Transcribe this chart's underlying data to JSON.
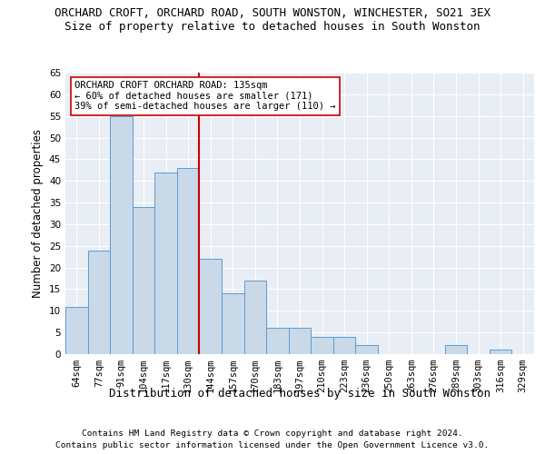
{
  "title": "ORCHARD CROFT, ORCHARD ROAD, SOUTH WONSTON, WINCHESTER, SO21 3EX",
  "subtitle": "Size of property relative to detached houses in South Wonston",
  "xlabel": "Distribution of detached houses by size in South Wonston",
  "ylabel": "Number of detached properties",
  "footnote1": "Contains HM Land Registry data © Crown copyright and database right 2024.",
  "footnote2": "Contains public sector information licensed under the Open Government Licence v3.0.",
  "categories": [
    "64sqm",
    "77sqm",
    "91sqm",
    "104sqm",
    "117sqm",
    "130sqm",
    "144sqm",
    "157sqm",
    "170sqm",
    "183sqm",
    "197sqm",
    "210sqm",
    "223sqm",
    "236sqm",
    "250sqm",
    "263sqm",
    "276sqm",
    "289sqm",
    "303sqm",
    "316sqm",
    "329sqm"
  ],
  "values": [
    11,
    24,
    55,
    34,
    42,
    43,
    22,
    14,
    17,
    6,
    6,
    4,
    4,
    2,
    0,
    0,
    0,
    2,
    0,
    1,
    0
  ],
  "bar_color": "#c9d9e8",
  "bar_edgecolor": "#5b9bd5",
  "vline_x_index": 5.5,
  "vline_color": "#cc0000",
  "annotation_line1": "ORCHARD CROFT ORCHARD ROAD: 135sqm",
  "annotation_line2": "← 60% of detached houses are smaller (171)",
  "annotation_line3": "39% of semi-detached houses are larger (110) →",
  "annotation_box_color": "white",
  "annotation_box_edgecolor": "#cc0000",
  "ylim": [
    0,
    65
  ],
  "yticks": [
    0,
    5,
    10,
    15,
    20,
    25,
    30,
    35,
    40,
    45,
    50,
    55,
    60,
    65
  ],
  "background_color": "#e8eef4",
  "grid_color": "white",
  "title_fontsize": 9,
  "subtitle_fontsize": 9,
  "xlabel_fontsize": 9,
  "ylabel_fontsize": 8.5,
  "tick_fontsize": 7.5,
  "annotation_fontsize": 7.5,
  "footnote_fontsize": 6.8
}
